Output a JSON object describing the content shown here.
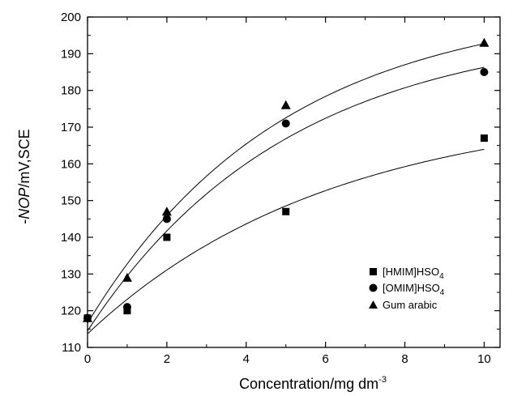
{
  "chart_data": {
    "type": "scatter",
    "title": "",
    "xlabel": {
      "prefix": "Concentration/mg dm",
      "sup": "-3"
    },
    "ylabel": {
      "pre": "-",
      "italic": "NOP",
      "post": "/mV,SCE"
    },
    "xlim": [
      0,
      10.4
    ],
    "ylim": [
      110,
      200
    ],
    "x_ticks": [
      0,
      2,
      4,
      6,
      8,
      10
    ],
    "y_ticks": [
      110,
      120,
      130,
      140,
      150,
      160,
      170,
      180,
      190,
      200
    ],
    "x_minor_step": 1,
    "y_minor_step": 5,
    "grid": false,
    "legend_position": "bottom-right",
    "series": [
      {
        "name_parts": {
          "base": "[HMIM]HSO",
          "sub": "4"
        },
        "marker": "square",
        "x": [
          0,
          1,
          2,
          5,
          10
        ],
        "y": [
          118,
          120,
          140,
          147,
          167
        ],
        "fit": {
          "y0": 113.7,
          "A": 62.5,
          "k": 0.163
        }
      },
      {
        "name_parts": {
          "base": "[OMIM]HSO",
          "sub": "4"
        },
        "marker": "circle",
        "x": [
          0,
          1,
          2,
          5,
          10
        ],
        "y": [
          118,
          121,
          145,
          171,
          185
        ],
        "fit": {
          "y0": 114.5,
          "A": 83.3,
          "k": 0.198
        }
      },
      {
        "name": "Gum arabic",
        "marker": "triangle",
        "x": [
          0,
          1,
          2,
          5,
          10
        ],
        "y": [
          118,
          129,
          147,
          176,
          193
        ],
        "fit": {
          "y0": 116.6,
          "A": 87.5,
          "k": 0.204
        }
      }
    ],
    "colors": {
      "markers": "#000000",
      "curves": "#000000",
      "axes": "#000000"
    }
  }
}
